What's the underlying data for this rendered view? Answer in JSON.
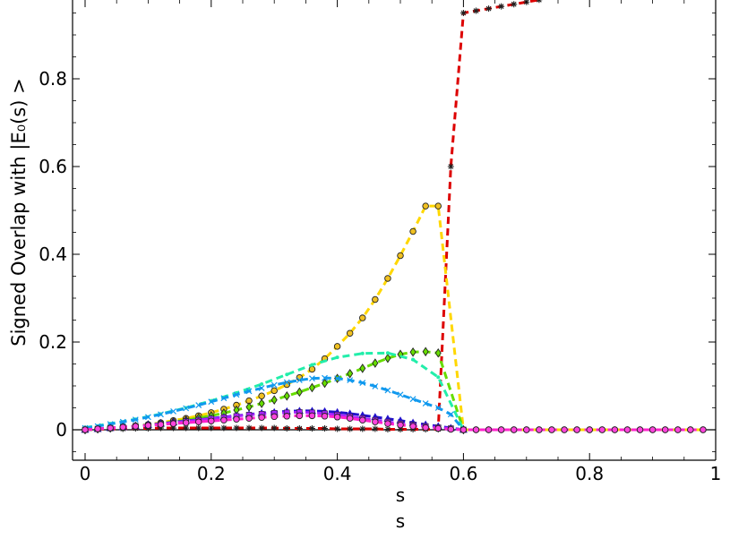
{
  "chart_data": {
    "type": "line",
    "xlabel": "s",
    "xlabel_repeat": "s",
    "ylabel": "Signed Overlap with |E₀(s) >",
    "xlim": [
      -0.02,
      1.0
    ],
    "ylim": [
      -0.07,
      1.0
    ],
    "x_ticks": [
      0,
      0.2,
      0.4,
      0.6,
      0.8,
      1
    ],
    "x_tick_labels": [
      "0",
      "0.2",
      "0.4",
      "0.6",
      "0.8",
      "1"
    ],
    "y_ticks": [
      0,
      0.2,
      0.4,
      0.6,
      0.8
    ],
    "y_tick_labels": [
      "0",
      "0.2",
      "0.4",
      "0.6",
      "0.8"
    ],
    "grid": false,
    "zero_line": true,
    "series": [
      {
        "color": "#dd0000",
        "marker": "star",
        "marker_color": "#dd0000",
        "x": [
          0,
          0.02,
          0.04,
          0.06,
          0.08,
          0.1,
          0.12,
          0.14,
          0.16,
          0.18,
          0.2,
          0.22,
          0.24,
          0.26,
          0.28,
          0.3,
          0.32,
          0.34,
          0.36,
          0.38,
          0.4,
          0.42,
          0.44,
          0.46,
          0.48,
          0.5,
          0.52,
          0.54,
          0.56,
          0.58,
          0.6,
          0.62,
          0.64,
          0.66,
          0.68,
          0.7,
          0.72
        ],
        "y": [
          0,
          0.001,
          0.002,
          0.002,
          0.003,
          0.003,
          0.004,
          0.004,
          0.004,
          0.004,
          0.004,
          0.004,
          0.004,
          0.004,
          0.004,
          0.004,
          0.003,
          0.003,
          0.003,
          0.003,
          0.002,
          0.002,
          0.002,
          0.002,
          0.001,
          0.001,
          0.001,
          0.001,
          0.001,
          0.6,
          0.95,
          0.955,
          0.96,
          0.965,
          0.97,
          0.975,
          0.98
        ]
      },
      {
        "color": "#ffd700",
        "marker": "circle",
        "marker_color": "#f0c020",
        "x": [
          0,
          0.02,
          0.04,
          0.06,
          0.08,
          0.1,
          0.12,
          0.14,
          0.16,
          0.18,
          0.2,
          0.22,
          0.24,
          0.26,
          0.28,
          0.3,
          0.32,
          0.34,
          0.36,
          0.38,
          0.4,
          0.42,
          0.44,
          0.46,
          0.48,
          0.5,
          0.52,
          0.54,
          0.56,
          0.6,
          0.62,
          0.64,
          0.66,
          0.68,
          0.7,
          0.72,
          0.74,
          0.76,
          0.78,
          0.8,
          0.82,
          0.84,
          0.86,
          0.88,
          0.9,
          0.92,
          0.94,
          0.96,
          0.98
        ],
        "y": [
          0,
          0.002,
          0.004,
          0.006,
          0.009,
          0.012,
          0.016,
          0.021,
          0.026,
          0.032,
          0.039,
          0.047,
          0.056,
          0.066,
          0.077,
          0.089,
          0.103,
          0.119,
          0.138,
          0.162,
          0.19,
          0.22,
          0.255,
          0.297,
          0.345,
          0.397,
          0.452,
          0.51,
          0.51,
          0,
          0,
          0,
          0,
          0,
          0,
          0,
          0,
          0,
          0,
          0,
          0,
          0,
          0,
          0,
          0,
          0,
          0,
          0,
          0
        ]
      },
      {
        "color": "#66dd00",
        "marker": "diamond",
        "marker_color": "#66dd00",
        "x": [
          0,
          0.02,
          0.04,
          0.06,
          0.08,
          0.1,
          0.12,
          0.14,
          0.16,
          0.18,
          0.2,
          0.22,
          0.24,
          0.26,
          0.28,
          0.3,
          0.32,
          0.34,
          0.36,
          0.38,
          0.4,
          0.42,
          0.44,
          0.46,
          0.48,
          0.5,
          0.52,
          0.54,
          0.56,
          0.6
        ],
        "y": [
          0,
          0.002,
          0.004,
          0.006,
          0.008,
          0.011,
          0.014,
          0.018,
          0.022,
          0.027,
          0.032,
          0.038,
          0.045,
          0.052,
          0.06,
          0.068,
          0.077,
          0.086,
          0.096,
          0.106,
          0.117,
          0.128,
          0.14,
          0.152,
          0.163,
          0.172,
          0.177,
          0.178,
          0.175,
          0
        ]
      },
      {
        "color": "#22eeaa",
        "marker": "dot",
        "marker_color": "#22eeaa",
        "x": [
          0,
          0.04,
          0.08,
          0.12,
          0.16,
          0.2,
          0.24,
          0.28,
          0.32,
          0.36,
          0.4,
          0.44,
          0.48,
          0.52,
          0.56,
          0.6
        ],
        "y": [
          0.005,
          0.014,
          0.024,
          0.036,
          0.05,
          0.066,
          0.084,
          0.104,
          0.126,
          0.148,
          0.165,
          0.174,
          0.175,
          0.16,
          0.12,
          0
        ]
      },
      {
        "color": "#1199ee",
        "marker": "x",
        "marker_color": "#1199ee",
        "x": [
          0,
          0.02,
          0.04,
          0.06,
          0.08,
          0.1,
          0.12,
          0.14,
          0.16,
          0.18,
          0.2,
          0.22,
          0.24,
          0.26,
          0.28,
          0.3,
          0.32,
          0.34,
          0.36,
          0.38,
          0.4,
          0.42,
          0.44,
          0.46,
          0.48,
          0.5,
          0.52,
          0.54,
          0.56,
          0.58,
          0.6
        ],
        "y": [
          0.004,
          0.008,
          0.013,
          0.018,
          0.023,
          0.029,
          0.035,
          0.042,
          0.049,
          0.056,
          0.064,
          0.072,
          0.08,
          0.088,
          0.095,
          0.102,
          0.108,
          0.113,
          0.117,
          0.118,
          0.117,
          0.113,
          0.107,
          0.099,
          0.09,
          0.08,
          0.07,
          0.06,
          0.05,
          0.035,
          0
        ]
      },
      {
        "color": "#2211cc",
        "marker": "triangle",
        "marker_color": "#2211cc",
        "x": [
          0,
          0.02,
          0.04,
          0.06,
          0.08,
          0.1,
          0.12,
          0.14,
          0.16,
          0.18,
          0.2,
          0.22,
          0.24,
          0.26,
          0.28,
          0.3,
          0.32,
          0.34,
          0.36,
          0.38,
          0.4,
          0.42,
          0.44,
          0.46,
          0.48,
          0.5,
          0.52,
          0.54,
          0.56,
          0.58,
          0.6
        ],
        "y": [
          0,
          0.002,
          0.004,
          0.006,
          0.008,
          0.011,
          0.014,
          0.017,
          0.02,
          0.023,
          0.026,
          0.029,
          0.032,
          0.035,
          0.038,
          0.04,
          0.042,
          0.043,
          0.043,
          0.042,
          0.04,
          0.037,
          0.033,
          0.029,
          0.025,
          0.021,
          0.016,
          0.012,
          0.008,
          0.004,
          0
        ]
      },
      {
        "color": "#aa22ff",
        "marker": "square",
        "marker_color": "#aa22ff",
        "x": [
          0,
          0.02,
          0.04,
          0.06,
          0.08,
          0.1,
          0.12,
          0.14,
          0.16,
          0.18,
          0.2,
          0.22,
          0.24,
          0.26,
          0.28,
          0.3,
          0.32,
          0.34,
          0.36,
          0.38,
          0.4,
          0.42,
          0.44,
          0.46,
          0.48,
          0.5,
          0.52,
          0.54,
          0.56,
          0.58,
          0.6
        ],
        "y": [
          0,
          0.002,
          0.004,
          0.006,
          0.008,
          0.01,
          0.013,
          0.016,
          0.019,
          0.022,
          0.025,
          0.028,
          0.031,
          0.034,
          0.036,
          0.038,
          0.039,
          0.04,
          0.039,
          0.037,
          0.034,
          0.03,
          0.026,
          0.022,
          0.018,
          0.014,
          0.011,
          0.008,
          0.005,
          0.003,
          0
        ]
      },
      {
        "color": "#ff22cc",
        "marker": "circle",
        "marker_color": "#ff44dd",
        "x": [
          0,
          0.02,
          0.04,
          0.06,
          0.08,
          0.1,
          0.12,
          0.14,
          0.16,
          0.18,
          0.2,
          0.22,
          0.24,
          0.26,
          0.28,
          0.3,
          0.32,
          0.34,
          0.36,
          0.38,
          0.4,
          0.42,
          0.44,
          0.46,
          0.48,
          0.5,
          0.52,
          0.54,
          0.56,
          0.58,
          0.6,
          0.62,
          0.64,
          0.66,
          0.68,
          0.7,
          0.72,
          0.74,
          0.76,
          0.78,
          0.8,
          0.82,
          0.84,
          0.86,
          0.88,
          0.9,
          0.92,
          0.94,
          0.96,
          0.98
        ],
        "y": [
          0,
          0.002,
          0.004,
          0.006,
          0.008,
          0.01,
          0.012,
          0.014,
          0.016,
          0.018,
          0.02,
          0.022,
          0.024,
          0.026,
          0.028,
          0.03,
          0.031,
          0.032,
          0.032,
          0.031,
          0.029,
          0.026,
          0.022,
          0.018,
          0.014,
          0.011,
          0.008,
          0.005,
          0.003,
          0.001,
          0,
          0,
          0,
          0,
          0,
          0,
          0,
          0,
          0,
          0,
          0,
          0,
          0,
          0,
          0,
          0,
          0,
          0,
          0,
          0
        ]
      }
    ]
  }
}
